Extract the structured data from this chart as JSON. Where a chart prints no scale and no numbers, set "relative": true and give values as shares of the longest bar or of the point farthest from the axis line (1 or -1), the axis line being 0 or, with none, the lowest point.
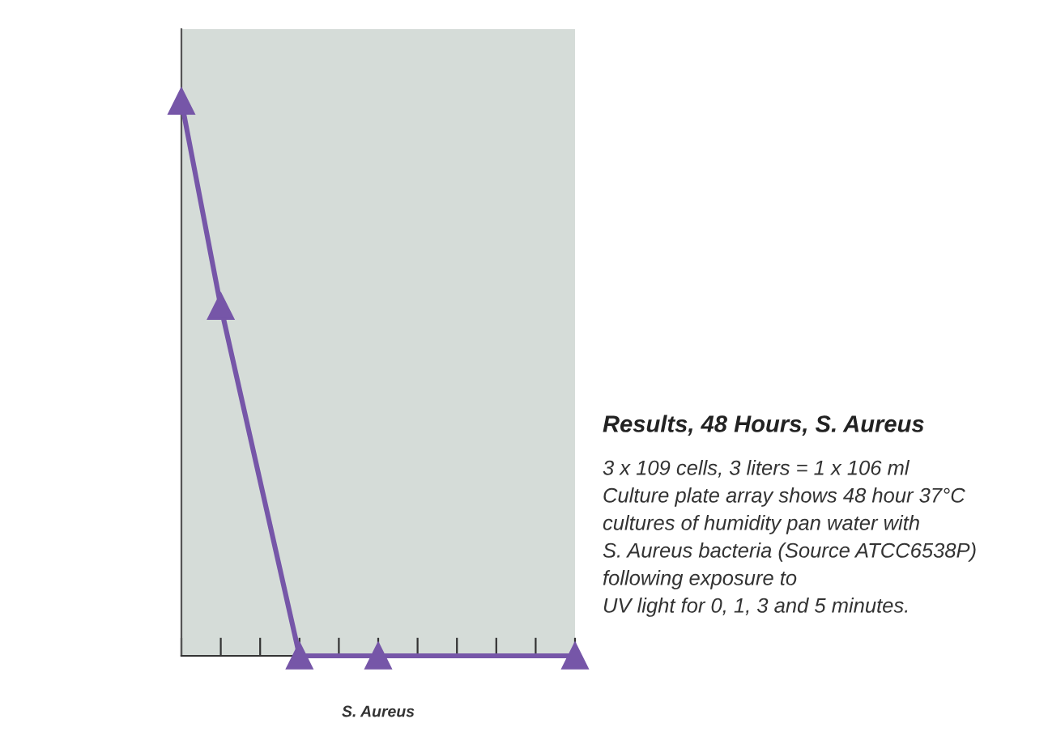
{
  "chart_data": {
    "type": "line",
    "relative": true,
    "title": "Results, 48 Hours, S. Aureus",
    "xlabel": "S. Aureus",
    "annotations": [
      "3 x 109 cells, 3 liters = 1 x 106 ml\nCulture plate array shows 48 hour 37°C\ncultures of humidity pan water with\nS. Aureus bacteria (Source ATCC6538P)\nfollowing exposure to\nUV light for 0, 1, 3 and 5 minutes."
    ],
    "categories": [
      null,
      null,
      null,
      null,
      null,
      null,
      null,
      null,
      null,
      null,
      null
    ],
    "series": [
      {
        "color": "#7656a8",
        "values": [
          1,
          0.63,
          null,
          0,
          null,
          0,
          null,
          null,
          null,
          null,
          0
        ]
      }
    ],
    "marker": "triangle",
    "line_style": "solid",
    "grid": false,
    "legend": false,
    "tick_labels": false
  }
}
